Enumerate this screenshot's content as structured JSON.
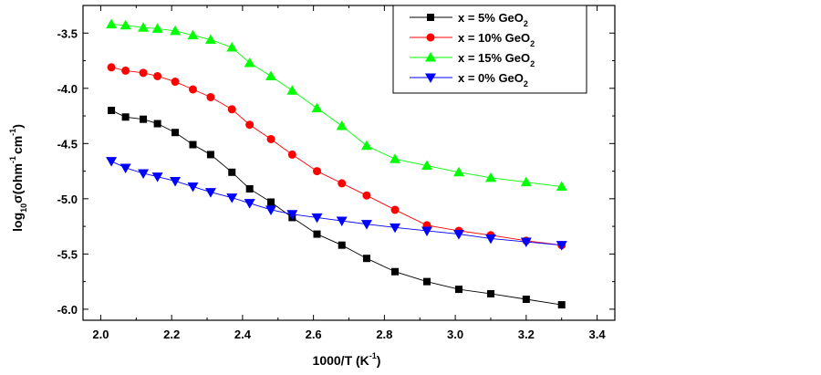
{
  "chart_data": {
    "type": "line",
    "xlabel_main": "1000/T (K",
    "xlabel_sup": "-1",
    "xlabel_tail": ")",
    "ylabel_log": "log",
    "ylabel_sub": "10",
    "ylabel_main": "σ(ohm",
    "ylabel_sup1": "-1",
    "ylabel_mid": "cm",
    "ylabel_sup2": "-1",
    "ylabel_tail": ")",
    "xlim": [
      1.95,
      3.45
    ],
    "ylim": [
      -6.1,
      -3.25
    ],
    "xticks": [
      2.0,
      2.2,
      2.4,
      2.6,
      2.8,
      3.0,
      3.2,
      3.4
    ],
    "xtick_labels": [
      "2.0",
      "2.2",
      "2.4",
      "2.6",
      "2.8",
      "3.0",
      "3.2",
      "3.4"
    ],
    "yticks": [
      -6.0,
      -5.5,
      -5.0,
      -4.5,
      -4.0,
      -3.5
    ],
    "ytick_labels": [
      "-6.0",
      "-5.5",
      "-5.0",
      "-4.5",
      "-4.0",
      "-3.5"
    ],
    "legend_position": "top-right",
    "series": [
      {
        "name": "x =   5% GeO",
        "name_sub": "2",
        "color": "#000000",
        "marker": "square",
        "x": [
          2.03,
          2.07,
          2.12,
          2.16,
          2.21,
          2.26,
          2.31,
          2.37,
          2.42,
          2.48,
          2.54,
          2.61,
          2.68,
          2.75,
          2.83,
          2.92,
          3.01,
          3.1,
          3.2,
          3.3
        ],
        "y": [
          -4.2,
          -4.26,
          -4.28,
          -4.32,
          -4.4,
          -4.51,
          -4.6,
          -4.76,
          -4.91,
          -5.03,
          -5.17,
          -5.32,
          -5.42,
          -5.54,
          -5.66,
          -5.75,
          -5.82,
          -5.86,
          -5.91,
          -5.96
        ]
      },
      {
        "name": "x = 10% GeO",
        "name_sub": "2",
        "color": "#ff0000",
        "marker": "circle",
        "x": [
          2.03,
          2.07,
          2.12,
          2.16,
          2.21,
          2.26,
          2.31,
          2.37,
          2.42,
          2.48,
          2.54,
          2.61,
          2.68,
          2.75,
          2.83,
          2.92,
          3.01,
          3.1,
          3.2,
          3.3
        ],
        "y": [
          -3.81,
          -3.84,
          -3.86,
          -3.89,
          -3.94,
          -4.01,
          -4.08,
          -4.19,
          -4.33,
          -4.46,
          -4.6,
          -4.75,
          -4.86,
          -4.97,
          -5.1,
          -5.24,
          -5.29,
          -5.33,
          -5.38,
          -5.42
        ]
      },
      {
        "name": "x = 15% GeO",
        "name_sub": "2",
        "color": "#00ff00",
        "marker": "triangle-up",
        "x": [
          2.03,
          2.07,
          2.12,
          2.16,
          2.21,
          2.26,
          2.31,
          2.37,
          2.42,
          2.48,
          2.54,
          2.61,
          2.68,
          2.75,
          2.83,
          2.92,
          3.01,
          3.1,
          3.2,
          3.3
        ],
        "y": [
          -3.42,
          -3.43,
          -3.45,
          -3.46,
          -3.48,
          -3.52,
          -3.56,
          -3.63,
          -3.77,
          -3.89,
          -4.02,
          -4.18,
          -4.34,
          -4.52,
          -4.64,
          -4.7,
          -4.76,
          -4.81,
          -4.85,
          -4.89
        ]
      },
      {
        "name": " x =   0% GeO",
        "name_sub": "2",
        "color": "#0000ff",
        "marker": "triangle-down",
        "x": [
          2.03,
          2.07,
          2.12,
          2.16,
          2.21,
          2.26,
          2.31,
          2.37,
          2.42,
          2.48,
          2.54,
          2.61,
          2.68,
          2.75,
          2.83,
          2.92,
          3.01,
          3.1,
          3.2,
          3.3
        ],
        "y": [
          -4.66,
          -4.72,
          -4.77,
          -4.8,
          -4.84,
          -4.89,
          -4.94,
          -4.99,
          -5.04,
          -5.1,
          -5.14,
          -5.17,
          -5.2,
          -5.23,
          -5.26,
          -5.29,
          -5.32,
          -5.36,
          -5.39,
          -5.42
        ]
      }
    ]
  }
}
